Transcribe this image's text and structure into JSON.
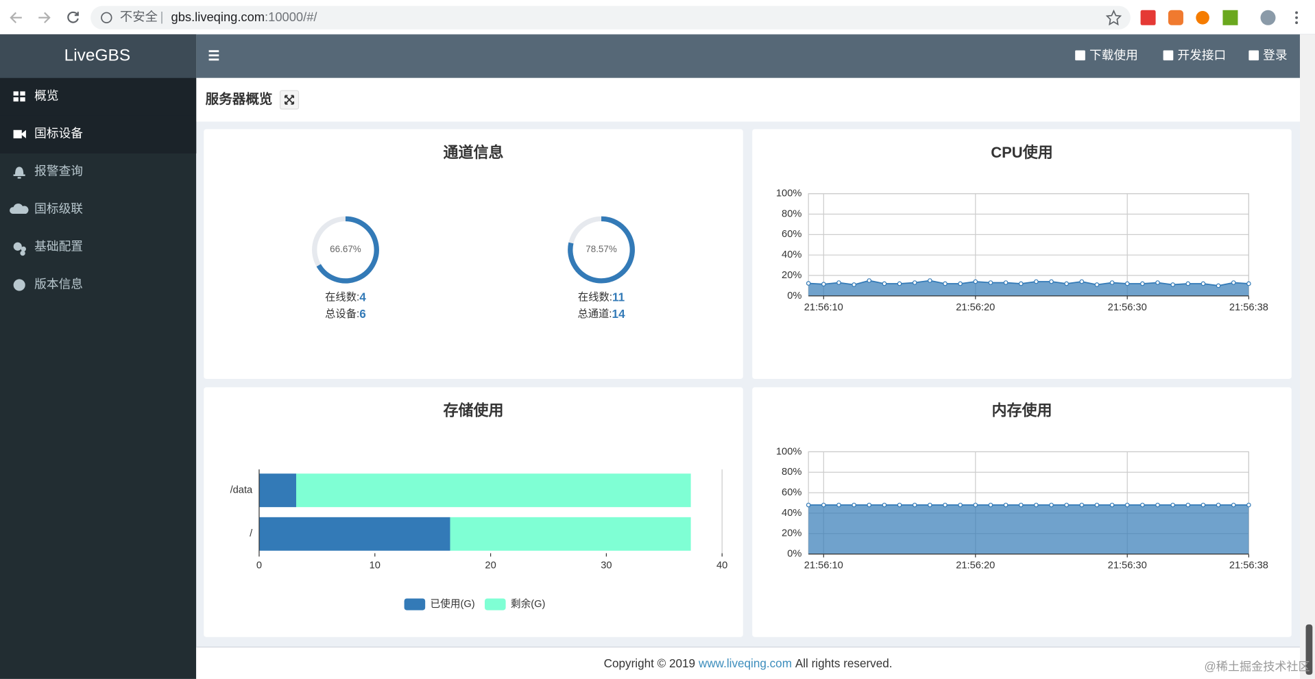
{
  "browser": {
    "insecure": "不安全",
    "url_host": "gbs.liveqing.com",
    "url_rest": ":10000/#/"
  },
  "sidebar": {
    "brand": "LiveGBS",
    "menu": [
      "概览",
      "国标设备",
      "报警查询",
      "国标级联",
      "基础配置",
      "版本信息"
    ]
  },
  "header": {
    "actions": [
      "下载使用",
      "开发接口",
      "登录"
    ]
  },
  "page": {
    "title": "服务器概览"
  },
  "chart_data": [
    {
      "type": "gauge",
      "title": "通道信息",
      "values": [
        66.67,
        78.57
      ],
      "value_labels": [
        "66.67%",
        "78.57%"
      ],
      "color": "#337ab7",
      "ylim": [
        0,
        100
      ],
      "details": [
        {
          "online_label": "在线数:",
          "online": 4,
          "total_label": "总设备:",
          "total": 6
        },
        {
          "online_label": "在线数:",
          "online": 11,
          "total_label": "总通道:",
          "total": 14
        }
      ]
    },
    {
      "type": "area",
      "title": "CPU使用",
      "color": "#337ab7",
      "categories": [
        null,
        "21:56:10",
        null,
        null,
        null,
        null,
        null,
        null,
        null,
        null,
        null,
        "21:56:20",
        null,
        null,
        null,
        null,
        null,
        null,
        null,
        null,
        null,
        "21:56:30",
        null,
        null,
        null,
        null,
        null,
        null,
        null,
        "21:56:38"
      ],
      "values": [
        12.3,
        11.5,
        13,
        11,
        15,
        12,
        12,
        13,
        15,
        12,
        12,
        14,
        13,
        13,
        12,
        14,
        14,
        12,
        14,
        11,
        13,
        12,
        12,
        13,
        11,
        12,
        12,
        10,
        13,
        12
      ],
      "ylim": [
        0,
        100
      ],
      "yticks": [
        {
          "value": 0,
          "label": "0%"
        },
        {
          "value": 20,
          "label": "20%"
        },
        {
          "value": 40,
          "label": "40%"
        },
        {
          "value": 60,
          "label": "60%"
        },
        {
          "value": 80,
          "label": "80%"
        },
        {
          "value": 100,
          "label": "100%"
        }
      ],
      "grid": true
    },
    {
      "type": "hbar",
      "stacked": true,
      "title": "存储使用",
      "categories": [
        "/data",
        "/"
      ],
      "series": [
        {
          "name": "已使用(G)",
          "color": "#337ab7",
          "values": [
            3.2,
            16.5
          ]
        },
        {
          "name": "剩余(G)",
          "color": "#7fffd4",
          "values": [
            34.1,
            20.8
          ]
        }
      ],
      "xlim": [
        0,
        40
      ],
      "xticks": [
        0,
        10,
        20,
        30,
        40
      ],
      "legend": "bottom"
    },
    {
      "type": "area",
      "title": "内存使用",
      "color": "#337ab7",
      "categories": [
        null,
        "21:56:10",
        null,
        null,
        null,
        null,
        null,
        null,
        null,
        null,
        null,
        "21:56:20",
        null,
        null,
        null,
        null,
        null,
        null,
        null,
        null,
        null,
        "21:56:30",
        null,
        null,
        null,
        null,
        null,
        null,
        null,
        "21:56:38"
      ],
      "values": [
        48,
        48,
        48,
        48,
        48,
        48,
        48,
        48,
        48,
        48,
        48,
        48,
        48,
        48,
        48,
        48,
        48,
        48,
        48,
        48,
        48,
        48,
        48,
        48,
        48,
        48,
        48,
        48,
        48,
        48
      ],
      "ylim": [
        0,
        100
      ],
      "yticks": [
        {
          "value": 0,
          "label": "0%"
        },
        {
          "value": 20,
          "label": "20%"
        },
        {
          "value": 40,
          "label": "40%"
        },
        {
          "value": 60,
          "label": "60%"
        },
        {
          "value": 80,
          "label": "80%"
        },
        {
          "value": 100,
          "label": "100%"
        }
      ],
      "grid": true
    }
  ],
  "footer": {
    "prefix": "Copyright © 2019",
    "link": "www.liveqing.com",
    "suffix": "All rights reserved."
  },
  "watermark": "@稀土掘金技术社区"
}
